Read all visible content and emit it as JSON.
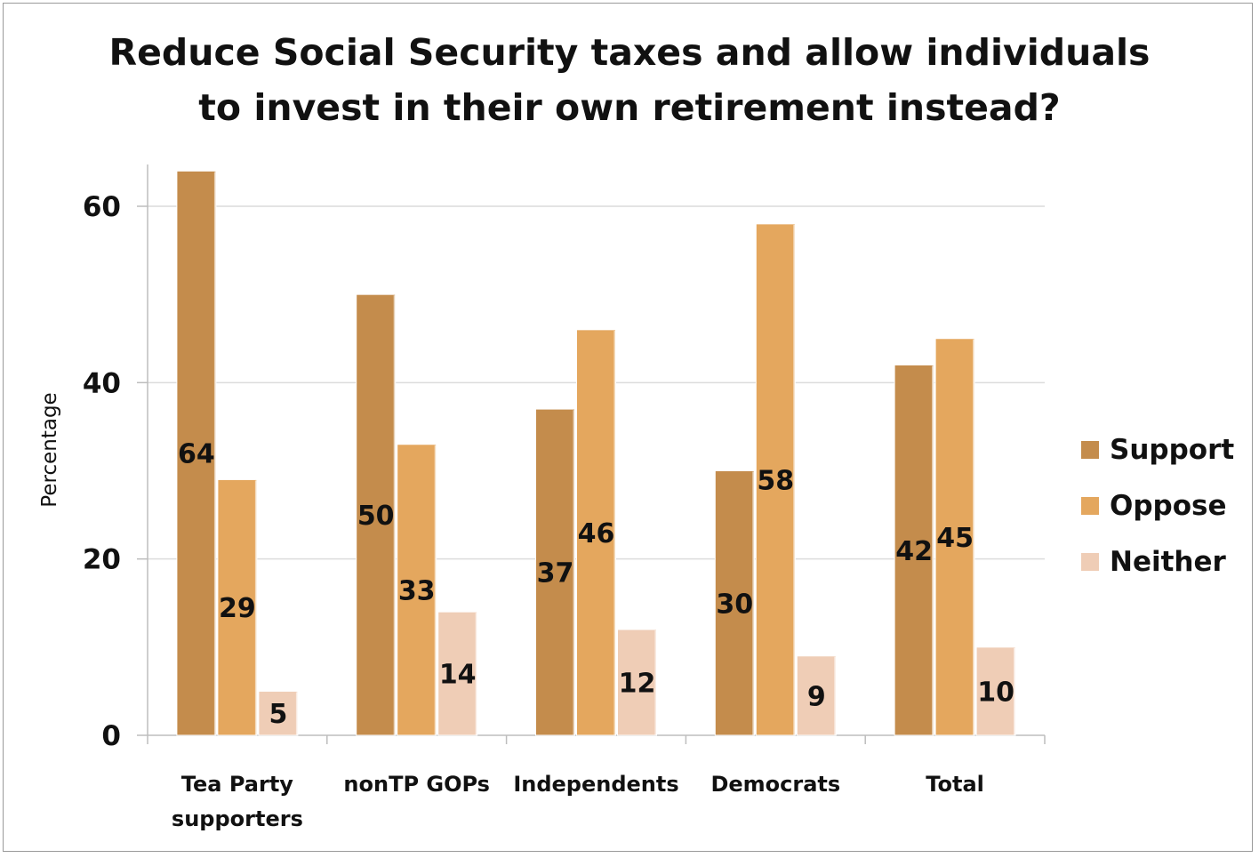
{
  "chart_data": {
    "type": "bar",
    "title_lines": [
      "Reduce Social Security taxes and allow individuals",
      "to invest in their own retirement instead?"
    ],
    "xlabel": "",
    "ylabel": "Percentage",
    "ylim": [
      0,
      65
    ],
    "yticks": [
      0,
      20,
      40,
      60
    ],
    "grid": true,
    "legend_position": "right",
    "categories": [
      [
        "Tea Party",
        "supporters"
      ],
      [
        "nonTP GOPs"
      ],
      [
        "Independents"
      ],
      [
        "Democrats"
      ],
      [
        "Total"
      ]
    ],
    "series": [
      {
        "name": "Support",
        "color": "#c48c4c",
        "values": [
          64,
          50,
          37,
          30,
          42
        ]
      },
      {
        "name": "Oppose",
        "color": "#e4a75e",
        "values": [
          29,
          33,
          46,
          58,
          45
        ]
      },
      {
        "name": "Neither",
        "color": "#efcdb6",
        "values": [
          5,
          14,
          12,
          9,
          10
        ]
      }
    ]
  }
}
